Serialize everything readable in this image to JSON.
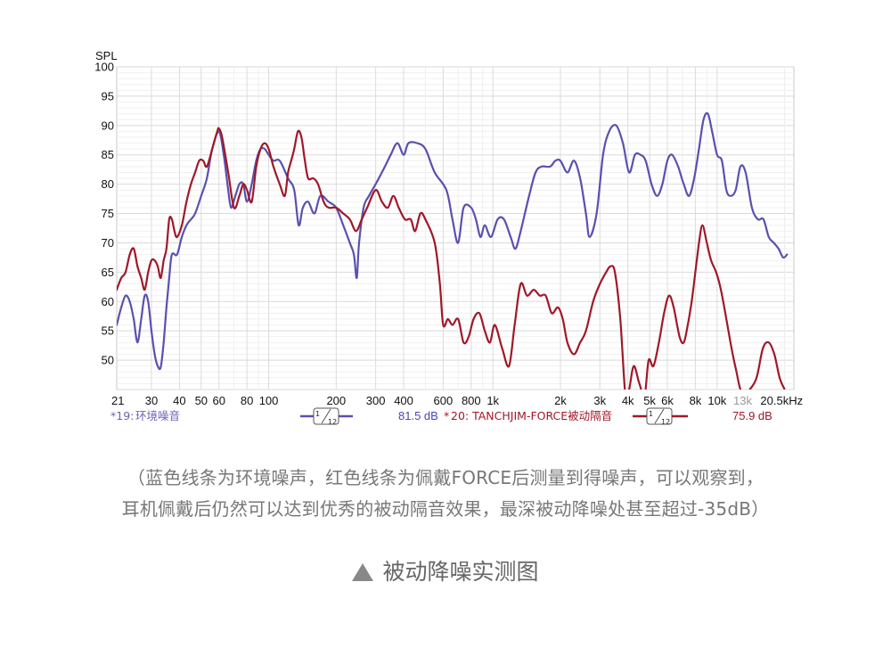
{
  "chart_data": {
    "type": "line",
    "ylabel": "SPL",
    "xscale": "log",
    "xlim": [
      21,
      22000
    ],
    "ylim": [
      45,
      100
    ],
    "yticks": [
      50,
      55,
      60,
      65,
      70,
      75,
      80,
      85,
      90,
      95,
      100
    ],
    "ytick_labels": [
      "50",
      "55",
      "60",
      "65",
      "70",
      "75",
      "80",
      "85",
      "90",
      "95",
      "100"
    ],
    "xticks": [
      21,
      30,
      40,
      50,
      60,
      80,
      100,
      200,
      300,
      400,
      600,
      800,
      1000,
      2000,
      3000,
      4000,
      5000,
      6000,
      8000,
      10000,
      13000,
      20500
    ],
    "xtick_labels": [
      "21",
      "30",
      "40",
      "50",
      "60",
      "80",
      "100",
      "200",
      "300",
      "400",
      "600",
      "800",
      "1k",
      "2k",
      "3k",
      "4k",
      "5k",
      "6k",
      "8k",
      "10k",
      "13k",
      "20.5kHz"
    ],
    "dim_xtick": "13k",
    "grid": true,
    "series": [
      {
        "name": "环境噪音",
        "legend_prefix": "*19: ",
        "smoothing_num": "1",
        "smoothing_den": "12",
        "level": "81.5 dB",
        "color": "#5a50b0",
        "points": [
          [
            21,
            56
          ],
          [
            22,
            59
          ],
          [
            23,
            61
          ],
          [
            24,
            60
          ],
          [
            25,
            57
          ],
          [
            26,
            53
          ],
          [
            27,
            57
          ],
          [
            28,
            61
          ],
          [
            29,
            60
          ],
          [
            30,
            55
          ],
          [
            31,
            51
          ],
          [
            32,
            49
          ],
          [
            33,
            48.8
          ],
          [
            34,
            53
          ],
          [
            35,
            59
          ],
          [
            36,
            64
          ],
          [
            37,
            68
          ],
          [
            39,
            68
          ],
          [
            41,
            71
          ],
          [
            43,
            73
          ],
          [
            45,
            74
          ],
          [
            47,
            75
          ],
          [
            50,
            78
          ],
          [
            53,
            81
          ],
          [
            56,
            86
          ],
          [
            60,
            89
          ],
          [
            63,
            85
          ],
          [
            66,
            79
          ],
          [
            68,
            76
          ],
          [
            71,
            78
          ],
          [
            74,
            80
          ],
          [
            77,
            80
          ],
          [
            80,
            77
          ],
          [
            84,
            80
          ],
          [
            88,
            84
          ],
          [
            92,
            86
          ],
          [
            96,
            86
          ],
          [
            100,
            85
          ],
          [
            105,
            84
          ],
          [
            112,
            84
          ],
          [
            122,
            81
          ],
          [
            130,
            79
          ],
          [
            136,
            73
          ],
          [
            142,
            76
          ],
          [
            150,
            77
          ],
          [
            160,
            75
          ],
          [
            170,
            78
          ],
          [
            185,
            77
          ],
          [
            200,
            76
          ],
          [
            215,
            73
          ],
          [
            230,
            70
          ],
          [
            240,
            68
          ],
          [
            247,
            64
          ],
          [
            253,
            70
          ],
          [
            265,
            76
          ],
          [
            280,
            78
          ],
          [
            300,
            80
          ],
          [
            330,
            83
          ],
          [
            350,
            85
          ],
          [
            375,
            87
          ],
          [
            400,
            85
          ],
          [
            420,
            87
          ],
          [
            460,
            87
          ],
          [
            500,
            86
          ],
          [
            550,
            82
          ],
          [
            620,
            79
          ],
          [
            660,
            74
          ],
          [
            700,
            70
          ],
          [
            740,
            76
          ],
          [
            800,
            76
          ],
          [
            840,
            74
          ],
          [
            880,
            71
          ],
          [
            920,
            73
          ],
          [
            980,
            71
          ],
          [
            1050,
            74
          ],
          [
            1120,
            74
          ],
          [
            1200,
            71
          ],
          [
            1260,
            69
          ],
          [
            1330,
            72
          ],
          [
            1450,
            78
          ],
          [
            1550,
            82
          ],
          [
            1650,
            83
          ],
          [
            1800,
            83
          ],
          [
            1900,
            84
          ],
          [
            2000,
            84
          ],
          [
            2150,
            82
          ],
          [
            2300,
            84
          ],
          [
            2450,
            81
          ],
          [
            2600,
            75
          ],
          [
            2700,
            71
          ],
          [
            2900,
            75
          ],
          [
            3100,
            85
          ],
          [
            3300,
            89
          ],
          [
            3550,
            90
          ],
          [
            3800,
            87
          ],
          [
            4050,
            82
          ],
          [
            4300,
            85
          ],
          [
            4550,
            85
          ],
          [
            4800,
            84
          ],
          [
            5100,
            80
          ],
          [
            5400,
            78
          ],
          [
            5700,
            80
          ],
          [
            6000,
            84
          ],
          [
            6300,
            85
          ],
          [
            6700,
            83
          ],
          [
            7100,
            80
          ],
          [
            7500,
            78
          ],
          [
            7900,
            81
          ],
          [
            8300,
            86
          ],
          [
            8700,
            91
          ],
          [
            9100,
            92
          ],
          [
            9500,
            89
          ],
          [
            10000,
            85
          ],
          [
            10500,
            84
          ],
          [
            11000,
            79
          ],
          [
            11500,
            78
          ],
          [
            12100,
            79
          ],
          [
            12700,
            83
          ],
          [
            13400,
            82
          ],
          [
            14300,
            76
          ],
          [
            15200,
            74
          ],
          [
            16100,
            74
          ],
          [
            17000,
            71
          ],
          [
            17900,
            70
          ],
          [
            18800,
            69
          ],
          [
            19700,
            67.5
          ],
          [
            20500,
            68
          ]
        ]
      },
      {
        "name": "20: TANCHJIM-FORCE被动隔音",
        "legend_prefix": "*",
        "smoothing_num": "1",
        "smoothing_den": "12",
        "level": "75.9 dB",
        "color": "#a01828",
        "points": [
          [
            21,
            62
          ],
          [
            22,
            64
          ],
          [
            23,
            65
          ],
          [
            24,
            68
          ],
          [
            25,
            69
          ],
          [
            26,
            66
          ],
          [
            27,
            64
          ],
          [
            28,
            62
          ],
          [
            29,
            65
          ],
          [
            30,
            67
          ],
          [
            31,
            67
          ],
          [
            32,
            66
          ],
          [
            33,
            64
          ],
          [
            34,
            67
          ],
          [
            35,
            69
          ],
          [
            36,
            74
          ],
          [
            37,
            74
          ],
          [
            38,
            72
          ],
          [
            39,
            71
          ],
          [
            41,
            73
          ],
          [
            43,
            77
          ],
          [
            45,
            80
          ],
          [
            47,
            82
          ],
          [
            49,
            84
          ],
          [
            51,
            84
          ],
          [
            53,
            83
          ],
          [
            56,
            86
          ],
          [
            59,
            89
          ],
          [
            60,
            89.5
          ],
          [
            62,
            88
          ],
          [
            66,
            82
          ],
          [
            70,
            76
          ],
          [
            74,
            78
          ],
          [
            77,
            80
          ],
          [
            80,
            79
          ],
          [
            84,
            77
          ],
          [
            88,
            83
          ],
          [
            92,
            86
          ],
          [
            96,
            87
          ],
          [
            100,
            86
          ],
          [
            105,
            83
          ],
          [
            112,
            80
          ],
          [
            118,
            78
          ],
          [
            122,
            82
          ],
          [
            126,
            84
          ],
          [
            130,
            86
          ],
          [
            135,
            89
          ],
          [
            140,
            88
          ],
          [
            145,
            84
          ],
          [
            150,
            81
          ],
          [
            158,
            81
          ],
          [
            166,
            80
          ],
          [
            176,
            77
          ],
          [
            185,
            76
          ],
          [
            200,
            76
          ],
          [
            215,
            75
          ],
          [
            230,
            74
          ],
          [
            245,
            72
          ],
          [
            260,
            74
          ],
          [
            275,
            76
          ],
          [
            300,
            79
          ],
          [
            320,
            77
          ],
          [
            340,
            76
          ],
          [
            360,
            78
          ],
          [
            380,
            76
          ],
          [
            405,
            74
          ],
          [
            430,
            74
          ],
          [
            450,
            72
          ],
          [
            475,
            75
          ],
          [
            500,
            74
          ],
          [
            550,
            70
          ],
          [
            580,
            63
          ],
          [
            600,
            56
          ],
          [
            630,
            57
          ],
          [
            660,
            56
          ],
          [
            700,
            57
          ],
          [
            740,
            53
          ],
          [
            780,
            54
          ],
          [
            820,
            57
          ],
          [
            870,
            58
          ],
          [
            920,
            55
          ],
          [
            970,
            53
          ],
          [
            1020,
            56
          ],
          [
            1100,
            52
          ],
          [
            1180,
            49
          ],
          [
            1250,
            56
          ],
          [
            1330,
            63
          ],
          [
            1420,
            61
          ],
          [
            1520,
            62
          ],
          [
            1620,
            61
          ],
          [
            1720,
            61
          ],
          [
            1830,
            58
          ],
          [
            1950,
            59
          ],
          [
            2050,
            57
          ],
          [
            2150,
            53
          ],
          [
            2300,
            51
          ],
          [
            2450,
            53
          ],
          [
            2600,
            55
          ],
          [
            2800,
            60
          ],
          [
            3000,
            63
          ],
          [
            3200,
            65
          ],
          [
            3350,
            66
          ],
          [
            3500,
            65
          ],
          [
            3700,
            57
          ],
          [
            3900,
            44
          ],
          [
            4050,
            45
          ],
          [
            4250,
            49
          ],
          [
            4500,
            46
          ],
          [
            4750,
            44
          ],
          [
            4950,
            50
          ],
          [
            5200,
            49
          ],
          [
            5500,
            53
          ],
          [
            5800,
            58
          ],
          [
            6100,
            61
          ],
          [
            6400,
            59
          ],
          [
            6800,
            54
          ],
          [
            7100,
            53
          ],
          [
            7400,
            56
          ],
          [
            7700,
            60
          ],
          [
            8000,
            65
          ],
          [
            8300,
            70
          ],
          [
            8600,
            73
          ],
          [
            9000,
            70
          ],
          [
            9400,
            67
          ],
          [
            9900,
            65
          ],
          [
            10400,
            62
          ],
          [
            11000,
            57
          ],
          [
            11600,
            52
          ],
          [
            12200,
            48
          ],
          [
            12700,
            45
          ],
          [
            13300,
            44
          ],
          [
            14000,
            45
          ],
          [
            15000,
            47
          ],
          [
            16000,
            52
          ],
          [
            17000,
            53
          ],
          [
            18000,
            51
          ],
          [
            19000,
            47
          ],
          [
            20000,
            45
          ],
          [
            20500,
            44
          ]
        ]
      }
    ]
  },
  "caption_line1": "（蓝色线条为环境噪声，红色线条为佩戴FORCE后测量到得噪声，可以观察到，",
  "caption_line2": "耳机佩戴后仍然可以达到优秀的被动隔音效果，最深被动降噪处甚至超过-35dB）",
  "figure_title": "被动降噪实测图",
  "figure_title_icon": "triangle-up-icon"
}
